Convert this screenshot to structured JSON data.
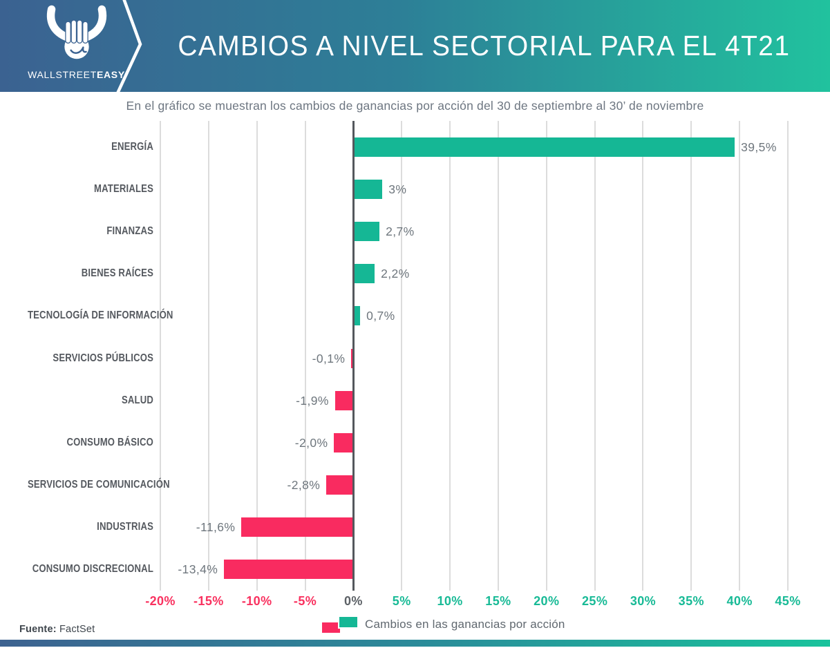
{
  "header": {
    "logo_text_regular": "WALLSTREET",
    "logo_text_bold": "EASY",
    "title": "CAMBIOS A NIVEL SECTORIAL PARA EL 4T21"
  },
  "subtitle": "En el gráfico se muestran los cambios de ganancias por acción del 30 de septiembre al 30’ de noviembre",
  "footer": {
    "source_label": "Fuente:",
    "source_value": "FactSet",
    "legend_label": "Cambios en las ganancias por acción"
  },
  "colors": {
    "positive": "#15b795",
    "negative": "#f92b60",
    "grid": "#dcdcdc",
    "axis": "#54585d",
    "header_gradient_left": "#3b6291",
    "header_gradient_right": "#21c29e"
  },
  "chart_data": {
    "type": "bar",
    "orientation": "horizontal",
    "title": "CAMBIOS A NIVEL SECTORIAL PARA EL 4T21",
    "subtitle": "En el gráfico se muestran los cambios de ganancias por acción del 30 de septiembre al 30’ de noviembre",
    "unit": "%",
    "categories": [
      "ENERGÍA",
      "MATERIALES",
      "FINANZAS",
      "BIENES RAÍCES",
      "TECNOLOGÍA DE INFORMACIÓN",
      "SERVICIOS PÚBLICOS",
      "SALUD",
      "CONSUMO BÁSICO",
      "SERVICIOS DE COMUNICACIÓN",
      "INDUSTRIAS",
      "CONSUMO DISCRECIONAL"
    ],
    "values": [
      39.5,
      3,
      2.7,
      2.2,
      0.7,
      -0.1,
      -1.9,
      -2.0,
      -2.8,
      -11.6,
      -13.4
    ],
    "value_labels": [
      "39,5%",
      "3%",
      "2,7%",
      "2,2%",
      "0,7%",
      "-0,1%",
      "-1,9%",
      "-2,0%",
      "-2,8%",
      "-11,6%",
      "-13,4%"
    ],
    "xlim": [
      -20,
      45
    ],
    "tick_step": 5,
    "tick_values": [
      -20,
      -15,
      -10,
      -5,
      0,
      5,
      10,
      15,
      20,
      25,
      30,
      35,
      40,
      45
    ],
    "tick_labels": [
      "-20%",
      "-15%",
      "-10%",
      "-5%",
      "0%",
      "5%",
      "10%",
      "15%",
      "20%",
      "25%",
      "30%",
      "35%",
      "40%",
      "45%"
    ],
    "grid": true,
    "legend": "Cambios en las ganancias por acción",
    "legend_position": "bottom"
  }
}
